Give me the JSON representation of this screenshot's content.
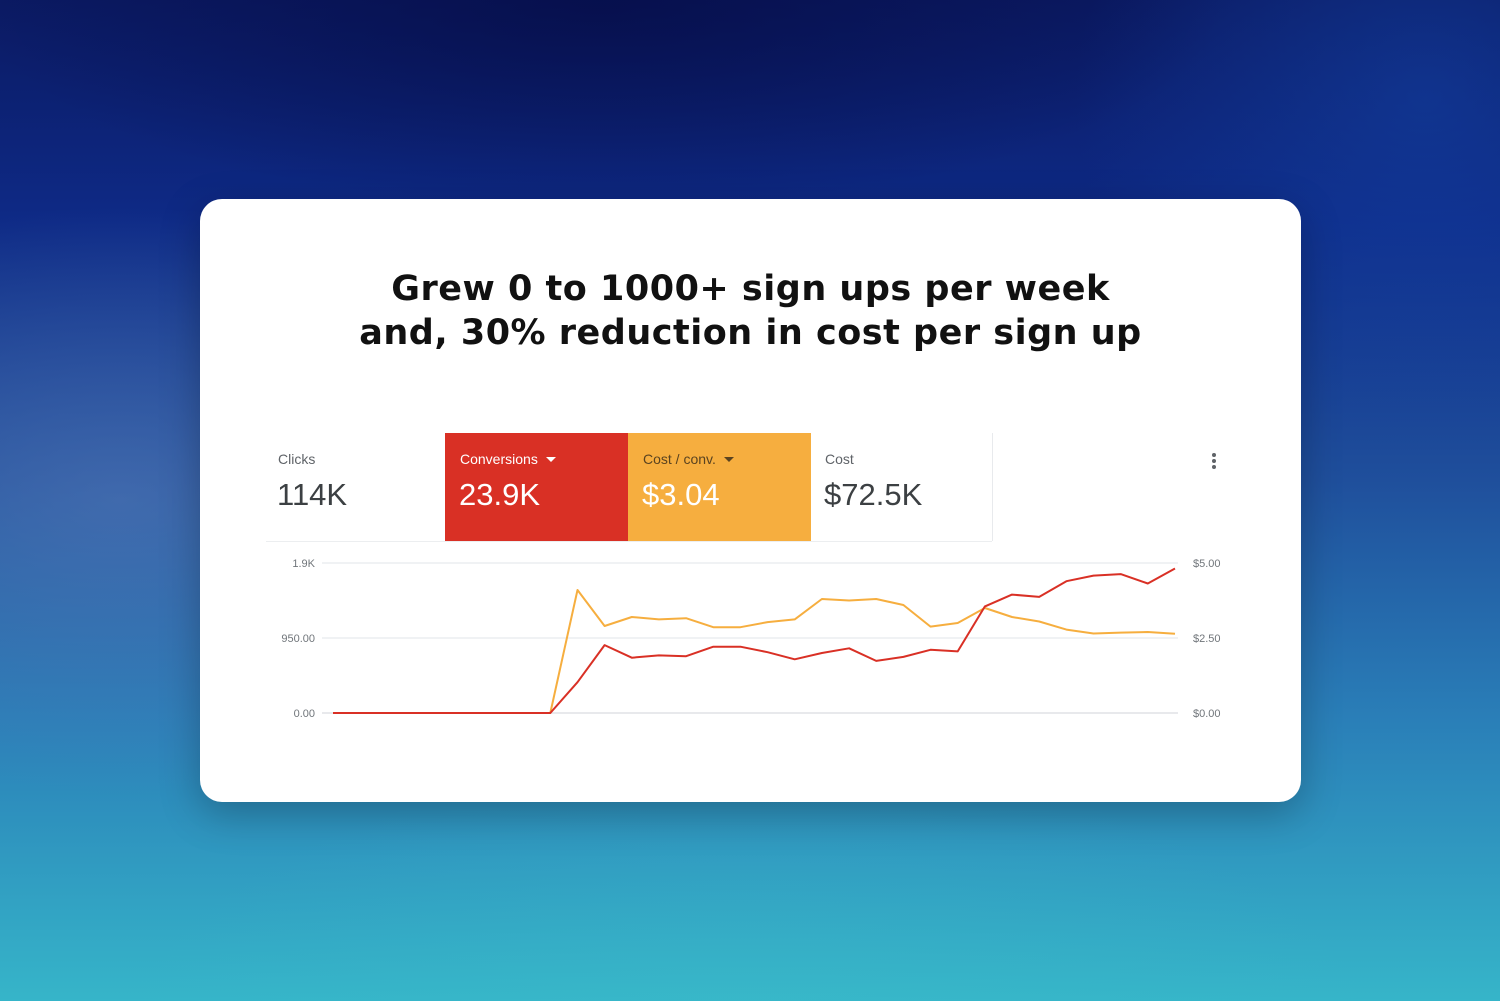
{
  "headline": {
    "line1": "Grew 0 to 1000+ sign ups per week",
    "line2": "and, 30% reduction in cost per sign up"
  },
  "metrics": [
    {
      "label": "Clicks",
      "value": "114K",
      "active": false
    },
    {
      "label": "Conversions",
      "value": "23.9K",
      "active": true,
      "color": "#d93025"
    },
    {
      "label": "Cost / conv.",
      "value": "$3.04",
      "active": true,
      "color": "#f6ae3f"
    },
    {
      "label": "Cost",
      "value": "$72.5K",
      "active": false
    }
  ],
  "menu": {
    "icon": "more-vert-icon"
  },
  "chart_data": {
    "type": "line",
    "y_left": {
      "ticks": [
        "1.9K",
        "950.00",
        "0.00"
      ],
      "range": [
        0,
        1900
      ]
    },
    "y_right": {
      "ticks": [
        "$5.00",
        "$2.50",
        "$0.00"
      ],
      "range": [
        0,
        5
      ]
    },
    "grid": true,
    "x": [
      1,
      2,
      3,
      4,
      5,
      6,
      7,
      8,
      9,
      10,
      11,
      12,
      13,
      14,
      15,
      16,
      17,
      18,
      19,
      20,
      21,
      22,
      23,
      24,
      25,
      26,
      27,
      28,
      29,
      30,
      31,
      32
    ],
    "series": [
      {
        "color": "#d93025",
        "axis": "left",
        "values": [
          0,
          0,
          0,
          0,
          0,
          0,
          0,
          0,
          0,
          390,
          860,
          700,
          730,
          720,
          840,
          840,
          770,
          680,
          760,
          820,
          660,
          710,
          800,
          780,
          1350,
          1500,
          1470,
          1670,
          1740,
          1760,
          1640,
          1830
        ]
      },
      {
        "color": "#f6ae3f",
        "axis": "right",
        "values": [
          0,
          0,
          0,
          0,
          0,
          0,
          0,
          0,
          0,
          4.1,
          2.9,
          3.2,
          3.12,
          3.16,
          2.86,
          2.86,
          3.03,
          3.12,
          3.8,
          3.75,
          3.8,
          3.6,
          2.88,
          3.0,
          3.5,
          3.2,
          3.05,
          2.78,
          2.65,
          2.68,
          2.7,
          2.64
        ]
      }
    ]
  }
}
